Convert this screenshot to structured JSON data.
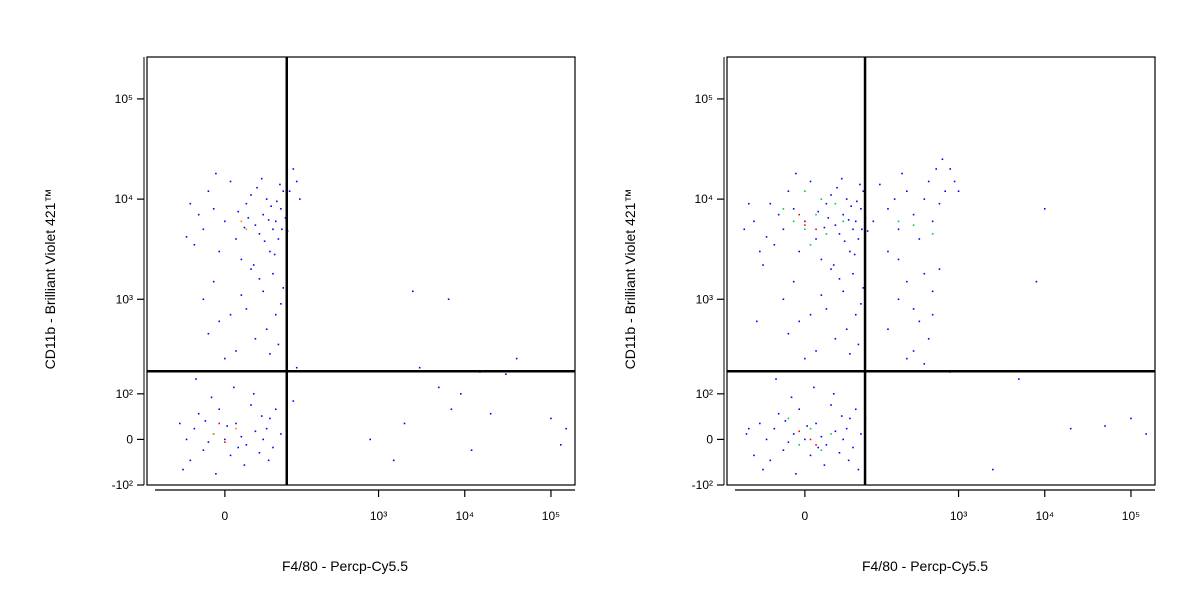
{
  "chart_data": [
    {
      "type": "scatter",
      "xlabel": "F4/80 - Percp-Cy5.5",
      "ylabel": "CD11b - Brilliant Violet 421™",
      "xscale": "biexponential",
      "yscale": "biexponential",
      "xlim": [
        -130,
        190000
      ],
      "ylim": [
        -100,
        262000
      ],
      "xticks": [
        0,
        {
          "value": 1000,
          "label": "10³"
        },
        {
          "value": 10000,
          "label": "10⁴"
        },
        {
          "value": 100000,
          "label": "10⁵"
        }
      ],
      "yticks": [
        {
          "value": -100,
          "label": "-10²"
        },
        0,
        {
          "value": 100,
          "label": "10²"
        },
        {
          "value": 1000,
          "label": "10³"
        },
        {
          "value": 10000,
          "label": "10⁴"
        },
        {
          "value": 100000,
          "label": "10⁵"
        }
      ],
      "quadrant": {
        "x": 83,
        "y": 183
      },
      "series": [
        {
          "color": "#0000ff",
          "x": [
            -20,
            -10,
            0,
            10,
            20,
            30,
            40,
            50,
            60,
            70,
            -30,
            -15,
            5,
            15,
            25,
            35,
            45,
            55,
            65,
            75,
            -25,
            -5,
            12,
            22,
            32,
            42,
            52,
            62,
            72,
            80,
            -35,
            -8,
            18,
            28,
            38,
            48,
            58,
            68,
            85,
            -40,
            -10,
            20,
            40,
            -5,
            30,
            55,
            10,
            60,
            -20,
            25,
            45,
            70,
            0,
            35,
            65,
            -15,
            15,
            50,
            5,
            75,
            -40,
            -30,
            -20,
            -10,
            0,
            10,
            20,
            30,
            40,
            50,
            -35,
            -25,
            -15,
            -5,
            5,
            15,
            25,
            35,
            45,
            55,
            -50,
            -45,
            -12,
            8,
            28,
            60,
            70,
            -28,
            18,
            38,
            -8,
            48,
            2,
            -18,
            12,
            110,
            100,
            90,
            120,
            2500,
            6500,
            3000,
            5000,
            7000,
            9000,
            15000,
            30000,
            40000,
            20000,
            12000,
            100000,
            150000,
            130000,
            1500,
            2000,
            800,
            100,
            110
          ],
          "y": [
            5000,
            8000,
            6000,
            4000,
            9000,
            5500,
            7000,
            3000,
            6000,
            8000,
            3500,
            12000,
            15000,
            2500,
            11000,
            4500,
            10000,
            5000,
            4000,
            12000,
            7000,
            3000,
            7500,
            6500,
            13000,
            3800,
            8500,
            9500,
            5000,
            6500,
            9000,
            18000,
            5200,
            2200,
            16000,
            6200,
            2800,
            14000,
            4800,
            4200,
            1500,
            800,
            1200,
            600,
            400,
            1800,
            300,
            700,
            1000,
            2000,
            500,
            900,
            250,
            1600,
            350,
            450,
            1100,
            280,
            700,
            1300,
            0,
            20,
            -20,
            10,
            0,
            30,
            -10,
            15,
            0,
            40,
            -40,
            50,
            -5,
            60,
            -30,
            5,
            70,
            -25,
            20,
            -15,
            30,
            -60,
            90,
            120,
            100,
            60,
            10,
            150,
            -50,
            45,
            -70,
            -40,
            25,
            35,
            -15,
            15000,
            20000,
            12000,
            10000,
            1200,
            1000,
            200,
            120,
            60,
            100,
            180,
            170,
            250,
            50,
            -20,
            40,
            20,
            -10,
            -40,
            30,
            0,
            80,
            200
          ]
        },
        {
          "color": "#ff8800",
          "x": [
            -10,
            10,
            20,
            15
          ],
          "y": [
            10,
            20,
            5000,
            6000
          ]
        },
        {
          "color": "#ff0000",
          "x": [
            0,
            -5
          ],
          "y": [
            -5,
            30
          ]
        }
      ]
    },
    {
      "type": "scatter",
      "xlabel": "F4/80 - Percp-Cy5.5",
      "ylabel": "CD11b - Brilliant Violet 421™",
      "xscale": "biexponential",
      "yscale": "biexponential",
      "xlim": [
        -130,
        190000
      ],
      "ylim": [
        -100,
        262000
      ],
      "xticks": [
        0,
        {
          "value": 1000,
          "label": "10³"
        },
        {
          "value": 10000,
          "label": "10⁴"
        },
        {
          "value": 100000,
          "label": "10⁵"
        }
      ],
      "yticks": [
        {
          "value": -100,
          "label": "-10²"
        },
        0,
        {
          "value": 100,
          "label": "10²"
        },
        {
          "value": 1000,
          "label": "10³"
        },
        {
          "value": 10000,
          "label": "10⁴"
        },
        {
          "value": 100000,
          "label": "10⁵"
        }
      ],
      "quadrant": {
        "x": 79,
        "y": 183
      },
      "series": [
        {
          "color": "#0000ff",
          "x": [
            -20,
            -10,
            0,
            10,
            20,
            30,
            40,
            50,
            60,
            70,
            -30,
            -15,
            5,
            15,
            25,
            35,
            45,
            55,
            65,
            75,
            -25,
            -5,
            12,
            22,
            32,
            42,
            52,
            62,
            72,
            80,
            -35,
            -8,
            18,
            28,
            38,
            48,
            58,
            68,
            85,
            -40,
            -60,
            -70,
            -50,
            -80,
            100,
            150,
            200,
            300,
            400,
            500,
            600,
            700,
            150,
            250,
            350,
            450,
            550,
            650,
            120,
            180,
            220,
            800,
            900,
            1000,
            200,
            250,
            300,
            350,
            400,
            450,
            500,
            300,
            250,
            200,
            500,
            600,
            400,
            150,
            -10,
            20,
            40,
            -5,
            30,
            55,
            10,
            60,
            -20,
            25,
            45,
            70,
            0,
            35,
            65,
            -15,
            15,
            50,
            5,
            75,
            -45,
            -55,
            -40,
            -30,
            -20,
            -10,
            0,
            10,
            20,
            30,
            40,
            50,
            -35,
            -25,
            -15,
            -5,
            5,
            15,
            25,
            35,
            45,
            55,
            -50,
            -45,
            -12,
            8,
            28,
            60,
            70,
            -28,
            18,
            38,
            -8,
            48,
            2,
            -18,
            12,
            -70,
            -60,
            80,
            65,
            -75,
            10000,
            8000,
            5000,
            20000,
            50000,
            100000,
            150000,
            2500,
            800
          ],
          "y": [
            5000,
            8000,
            6000,
            4000,
            9000,
            5500,
            7000,
            3000,
            6000,
            8000,
            3500,
            12000,
            15000,
            2500,
            11000,
            4500,
            10000,
            5000,
            4000,
            12000,
            7000,
            3000,
            7500,
            6500,
            13000,
            3800,
            8500,
            9500,
            5000,
            6500,
            9000,
            18000,
            5200,
            2200,
            16000,
            6200,
            2800,
            14000,
            4800,
            4200,
            6000,
            9000,
            3000,
            5000,
            6000,
            8000,
            5000,
            7000,
            10000,
            6000,
            9000,
            12000,
            3000,
            12000,
            4000,
            15000,
            20000,
            25000,
            14000,
            10000,
            18000,
            20000,
            15000,
            12000,
            2500,
            1500,
            800,
            600,
            1800,
            400,
            1200,
            300,
            250,
            1000,
            700,
            2000,
            220,
            500,
            1500,
            800,
            1200,
            600,
            400,
            1800,
            300,
            700,
            1000,
            2000,
            500,
            900,
            250,
            1600,
            350,
            450,
            1100,
            280,
            700,
            1300,
            2200,
            600,
            0,
            20,
            -20,
            10,
            0,
            30,
            -10,
            15,
            0,
            40,
            -40,
            50,
            -5,
            60,
            -30,
            5,
            70,
            -25,
            20,
            -15,
            30,
            -60,
            90,
            120,
            100,
            60,
            10,
            150,
            -50,
            45,
            -70,
            -40,
            25,
            35,
            -15,
            20,
            -30,
            40,
            -60,
            10,
            8000,
            1500,
            150,
            20,
            25,
            40,
            10,
            -60,
            180
          ]
        },
        {
          "color": "#00cc44",
          "x": [
            -10,
            0,
            10,
            20,
            -20,
            30,
            5,
            15,
            -5,
            5,
            15,
            -15,
            25,
            200,
            300,
            500,
            0,
            40
          ],
          "y": [
            6000,
            5000,
            7000,
            4500,
            8000,
            9000,
            3500,
            10000,
            -10,
            20,
            -20,
            40,
            10,
            6000,
            5500,
            4500,
            12000,
            6000
          ]
        },
        {
          "color": "#ff0000",
          "x": [
            0,
            10,
            -5,
            5,
            -5,
            10,
            0
          ],
          "y": [
            6000,
            5000,
            7000,
            0,
            15,
            -10,
            5500
          ]
        }
      ]
    }
  ]
}
